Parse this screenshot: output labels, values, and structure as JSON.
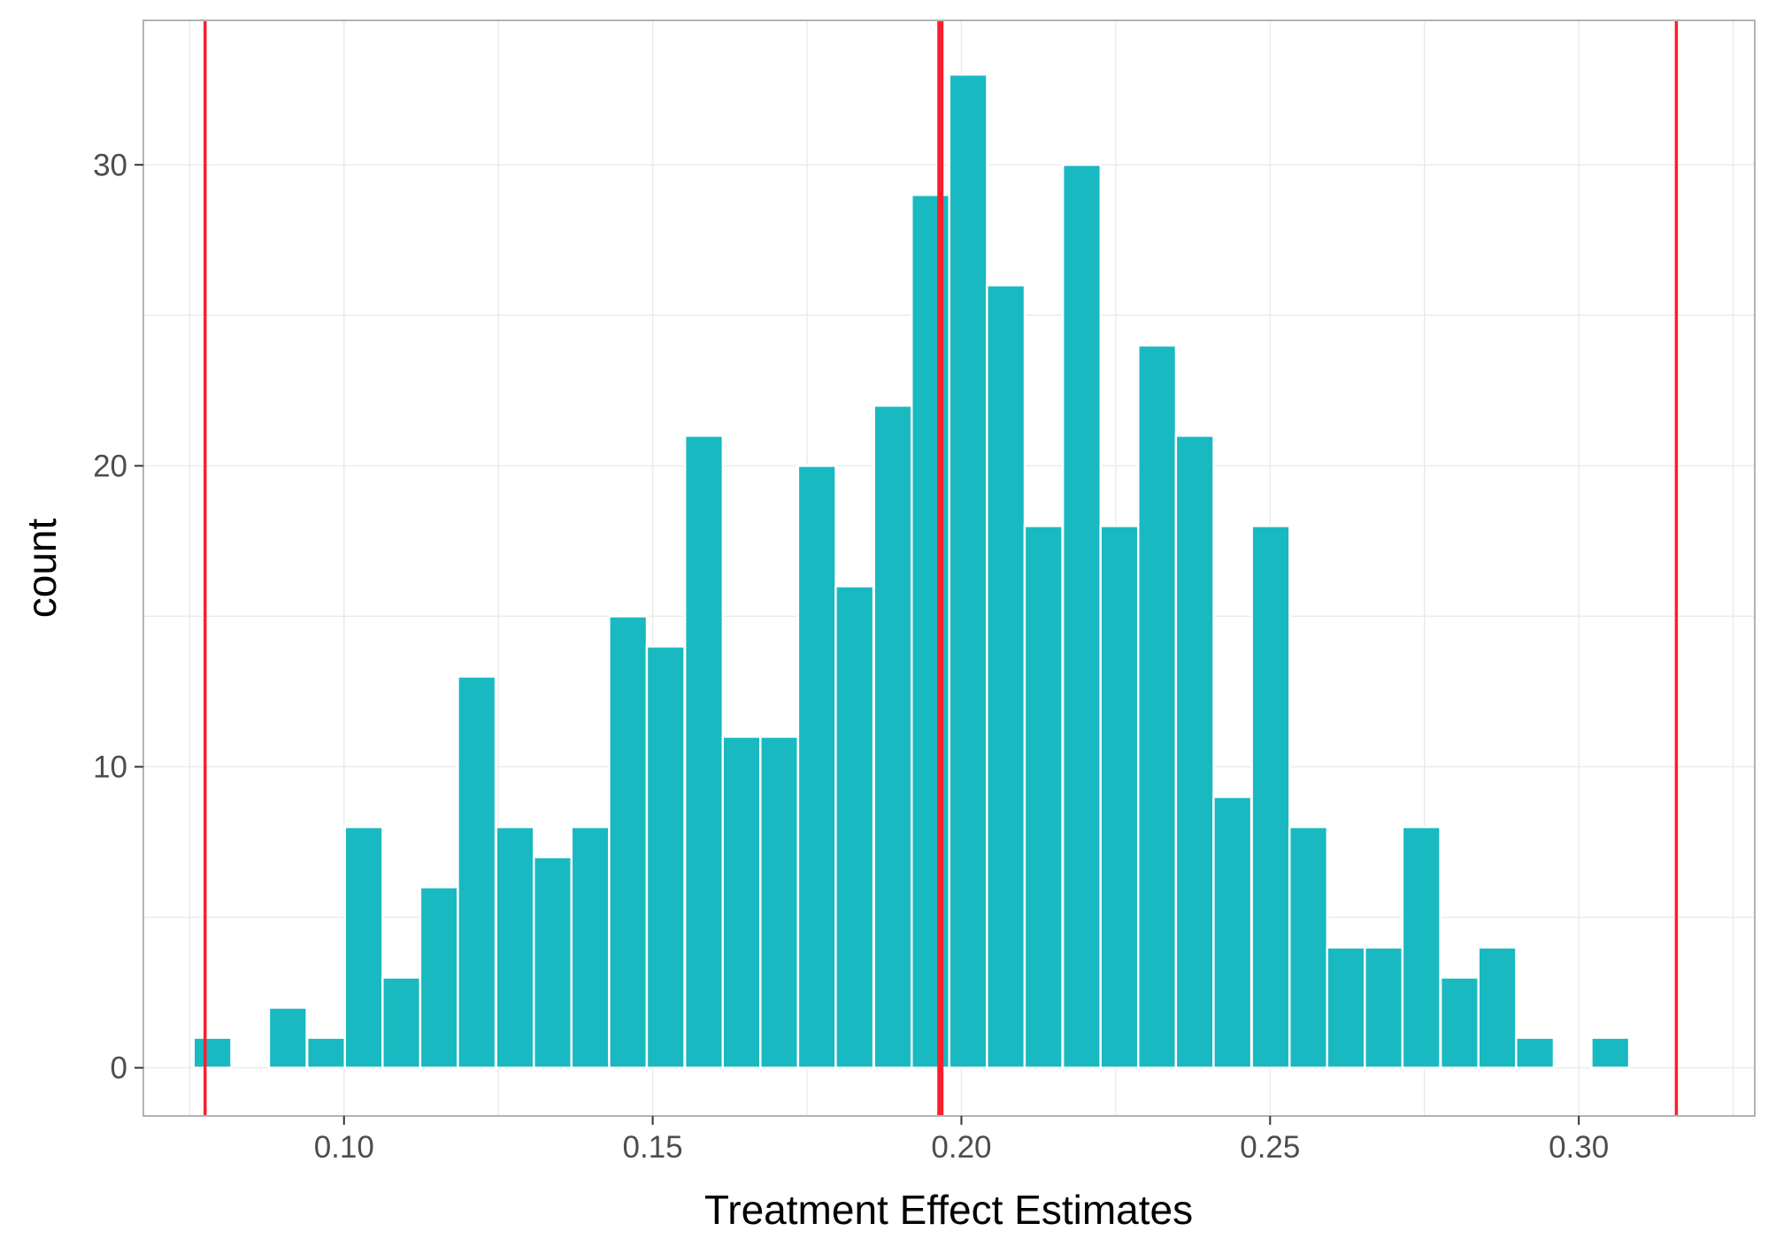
{
  "chart_data": {
    "type": "bar",
    "xlabel": "Treatment Effect Estimates",
    "ylabel": "count",
    "xlim": [
      0.0675,
      0.3285
    ],
    "ylim": [
      -1.6,
      34.8
    ],
    "x_ticks": [
      0.1,
      0.15,
      0.2,
      0.25,
      0.3
    ],
    "x_tick_labels": [
      "0.10",
      "0.15",
      "0.20",
      "0.25",
      "0.30"
    ],
    "y_ticks": [
      0,
      10,
      20,
      30
    ],
    "y_tick_labels": [
      "0",
      "10",
      "20",
      "30"
    ],
    "grid": true,
    "bin_width": 0.00612,
    "series": [
      {
        "bin_centers": [
          0.0787,
          0.0909,
          0.0971,
          0.1032,
          0.1093,
          0.1154,
          0.1215,
          0.1277,
          0.1338,
          0.1399,
          0.146,
          0.1521,
          0.1583,
          0.1644,
          0.1705,
          0.1766,
          0.1827,
          0.1889,
          0.195,
          0.2011,
          0.2072,
          0.2133,
          0.2195,
          0.2256,
          0.2317,
          0.2378,
          0.2439,
          0.2501,
          0.2562,
          0.2623,
          0.2684,
          0.2745,
          0.2807,
          0.2868,
          0.2929,
          0.3051
        ],
        "counts": [
          1,
          2,
          1,
          8,
          3,
          6,
          13,
          8,
          7,
          8,
          15,
          14,
          21,
          11,
          11,
          20,
          16,
          22,
          29,
          33,
          26,
          18,
          30,
          18,
          24,
          21,
          9,
          18,
          8,
          4,
          4,
          8,
          3,
          4,
          1,
          1
        ]
      }
    ],
    "vlines": [
      {
        "x": 0.0775,
        "color": "#f8202d"
      },
      {
        "x": 0.1966,
        "color": "#f8202d"
      },
      {
        "x": 0.3158,
        "color": "#f8202d"
      }
    ],
    "colors": {
      "bar_fill": "#19b9c1",
      "bar_outline": "#ffffff",
      "grid": "#ebebeb",
      "panel_border": "#b3b3b3",
      "tick": "#333333"
    }
  }
}
